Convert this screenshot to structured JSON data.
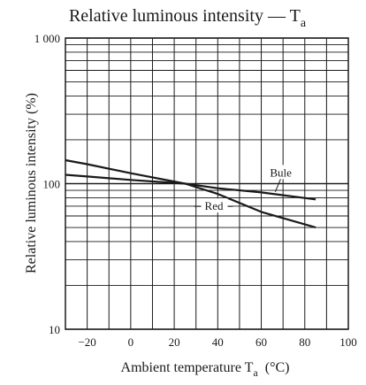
{
  "chart_data": {
    "type": "line",
    "title": "Relative luminous intensity — T",
    "title_subscript": "a",
    "xlabel": "Ambient temperature  T",
    "xlabel_subscript": "a",
    "xlabel_suffix": "(°C)",
    "ylabel": "Relative luminous intensity  (%)",
    "xlim": [
      -30,
      100
    ],
    "ylim": [
      10,
      1000
    ],
    "yscale": "log",
    "grid": true,
    "x_ticks": [
      -20,
      0,
      20,
      40,
      60,
      80,
      100
    ],
    "x_tick_labels": [
      "−20",
      "0",
      "20",
      "40",
      "60",
      "80",
      "100"
    ],
    "y_ticks": [
      10,
      100,
      1000
    ],
    "y_tick_labels": [
      "10",
      "100",
      "1 000"
    ],
    "series": [
      {
        "name": "Bule",
        "x": [
          -30,
          -20,
          0,
          25,
          40,
          60,
          85
        ],
        "y": [
          115,
          112,
          106,
          100,
          93,
          87,
          78
        ]
      },
      {
        "name": "Red",
        "x": [
          -30,
          -20,
          0,
          25,
          40,
          60,
          85
        ],
        "y": [
          145,
          136,
          118,
          100,
          85,
          64,
          50
        ]
      }
    ]
  }
}
